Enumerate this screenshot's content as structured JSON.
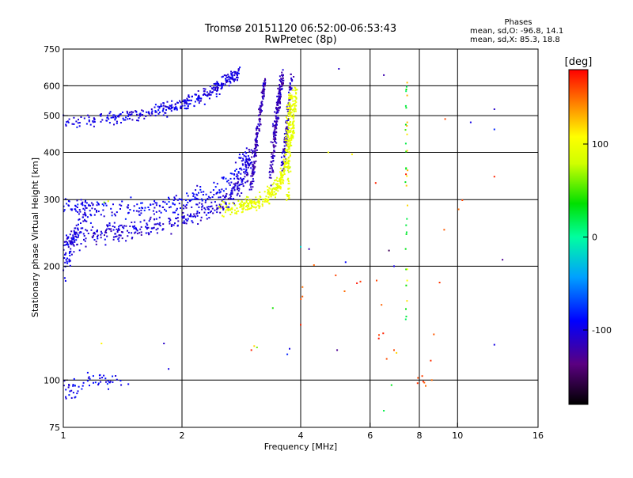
{
  "header": {
    "title_line1": "Tromsø 20151120 06:52:00-06:53:43",
    "title_line2": "RwPretec (8p)",
    "stats_title": "Phases",
    "stats_line1": "mean, sd,O: -96.8, 14.1",
    "stats_line2": "mean, sd,X:  85.3, 18.8"
  },
  "chart_data": {
    "type": "scatter",
    "xlabel": "Frequency [MHz]",
    "ylabel": "Stationary phase Virtual Height [km]",
    "xscale": "log",
    "yscale": "log",
    "xlim": [
      1,
      16
    ],
    "ylim": [
      75,
      750
    ],
    "x_ticks": [
      1,
      2,
      4,
      6,
      8,
      10,
      16
    ],
    "x_grid": [
      2,
      4,
      6,
      8,
      10
    ],
    "y_ticks": [
      75,
      100,
      200,
      300,
      400,
      500,
      600,
      750
    ],
    "y_grid": [
      100,
      200,
      300,
      400,
      500,
      600
    ],
    "colorbar": {
      "label": "[deg]",
      "range": [
        -180,
        180
      ],
      "ticks": [
        100,
        0,
        -100
      ]
    },
    "traces": [
      {
        "name": "o-F2",
        "phase": -100,
        "spread": 0.035,
        "count": 360,
        "points": [
          [
            1.0,
            485
          ],
          [
            1.2,
            488
          ],
          [
            1.4,
            495
          ],
          [
            1.6,
            505
          ],
          [
            1.8,
            520
          ],
          [
            2.0,
            535
          ],
          [
            2.2,
            555
          ],
          [
            2.4,
            585
          ],
          [
            2.6,
            620
          ],
          [
            2.8,
            650
          ]
        ]
      },
      {
        "name": "o-F-lower",
        "phase": -105,
        "spread": 0.05,
        "count": 420,
        "points": [
          [
            1.0,
            232
          ],
          [
            1.1,
            238
          ],
          [
            1.3,
            244
          ],
          [
            1.6,
            252
          ],
          [
            1.9,
            262
          ],
          [
            2.2,
            275
          ],
          [
            2.5,
            292
          ],
          [
            2.7,
            312
          ],
          [
            2.9,
            350
          ],
          [
            3.0,
            400
          ]
        ]
      },
      {
        "name": "o-F-upper",
        "phase": -95,
        "spread": 0.05,
        "count": 240,
        "points": [
          [
            1.0,
            292
          ],
          [
            1.2,
            285
          ],
          [
            1.5,
            283
          ],
          [
            1.8,
            288
          ],
          [
            2.1,
            300
          ],
          [
            2.4,
            315
          ],
          [
            2.7,
            345
          ],
          [
            2.9,
            390
          ]
        ]
      },
      {
        "name": "o-low-ramp",
        "phase": -100,
        "spread": 0.07,
        "count": 90,
        "points": [
          [
            1.0,
            190
          ],
          [
            1.03,
            215
          ],
          [
            1.06,
            240
          ],
          [
            1.1,
            260
          ],
          [
            1.15,
            280
          ]
        ]
      },
      {
        "name": "o-cusp-a",
        "phase": -115,
        "spread": 0.025,
        "count": 170,
        "points": [
          [
            3.0,
            320
          ],
          [
            3.05,
            380
          ],
          [
            3.1,
            440
          ],
          [
            3.15,
            500
          ],
          [
            3.2,
            560
          ],
          [
            3.25,
            620
          ]
        ]
      },
      {
        "name": "o-cusp-b",
        "phase": -115,
        "spread": 0.03,
        "count": 190,
        "points": [
          [
            3.35,
            340
          ],
          [
            3.4,
            400
          ],
          [
            3.45,
            460
          ],
          [
            3.5,
            520
          ],
          [
            3.55,
            580
          ],
          [
            3.6,
            640
          ]
        ]
      },
      {
        "name": "o-cusp-c",
        "phase": -110,
        "spread": 0.03,
        "count": 110,
        "points": [
          [
            3.6,
            360
          ],
          [
            3.65,
            420
          ],
          [
            3.7,
            480
          ],
          [
            3.75,
            560
          ],
          [
            3.8,
            640
          ]
        ]
      },
      {
        "name": "x-F",
        "phase": 95,
        "spread": 0.04,
        "count": 360,
        "points": [
          [
            2.5,
            285
          ],
          [
            2.8,
            288
          ],
          [
            3.0,
            292
          ],
          [
            3.2,
            300
          ],
          [
            3.4,
            315
          ],
          [
            3.55,
            335
          ],
          [
            3.65,
            360
          ],
          [
            3.7,
            400
          ],
          [
            3.72,
            460
          ],
          [
            3.75,
            520
          ],
          [
            3.8,
            580
          ]
        ]
      },
      {
        "name": "x-cusp",
        "phase": 92,
        "spread": 0.03,
        "count": 110,
        "points": [
          [
            3.7,
            300
          ],
          [
            3.75,
            380
          ],
          [
            3.8,
            450
          ],
          [
            3.85,
            520
          ],
          [
            3.9,
            600
          ]
        ]
      },
      {
        "name": "low-echoes",
        "phase": -95,
        "spread": 0.05,
        "count": 60,
        "points": [
          [
            1.0,
            96
          ],
          [
            1.05,
            93
          ],
          [
            1.1,
            97
          ],
          [
            1.2,
            101
          ],
          [
            1.3,
            97
          ],
          [
            1.45,
            99
          ]
        ]
      },
      {
        "name": "cyan-7.4",
        "phase": 30,
        "spread": 0.01,
        "count": 22,
        "points": [
          [
            7.4,
            110
          ],
          [
            7.4,
            180
          ],
          [
            7.4,
            240
          ],
          [
            7.4,
            310
          ],
          [
            7.4,
            420
          ],
          [
            7.4,
            520
          ],
          [
            7.4,
            620
          ]
        ]
      },
      {
        "name": "yellow-7.4",
        "phase": 120,
        "spread": 0.01,
        "count": 14,
        "points": [
          [
            7.45,
            160
          ],
          [
            7.45,
            300
          ],
          [
            7.45,
            390
          ],
          [
            7.45,
            520
          ],
          [
            7.45,
            640
          ]
        ]
      },
      {
        "name": "sparse-mid",
        "phase": 160,
        "spread": 0.05,
        "count": 26,
        "points": [
          [
            4.0,
            150
          ],
          [
            4.1,
            200
          ],
          [
            5.2,
            180
          ],
          [
            6.2,
            190
          ],
          [
            6.4,
            125
          ],
          [
            6.6,
            115
          ],
          [
            8.0,
            100
          ],
          [
            8.5,
            100
          ],
          [
            9.5,
            285
          ],
          [
            12.5,
            330
          ]
        ]
      }
    ],
    "singles": [
      [
        1.27,
        295,
        60
      ],
      [
        1.3,
        297,
        95
      ],
      [
        1.25,
        125,
        110
      ],
      [
        1.8,
        125,
        -110
      ],
      [
        1.85,
        107,
        -100
      ],
      [
        3.0,
        120,
        170
      ],
      [
        3.05,
        123,
        120
      ],
      [
        3.1,
        122,
        60
      ],
      [
        3.4,
        155,
        40
      ],
      [
        3.7,
        117,
        -80
      ],
      [
        3.75,
        121,
        -100
      ],
      [
        4.0,
        140,
        170
      ],
      [
        4.0,
        225,
        -20
      ],
      [
        4.2,
        222,
        -120
      ],
      [
        4.95,
        120,
        -130
      ],
      [
        5.0,
        665,
        -110
      ],
      [
        5.4,
        395,
        110
      ],
      [
        5.2,
        205,
        -90
      ],
      [
        6.5,
        640,
        -120
      ],
      [
        6.7,
        220,
        -150
      ],
      [
        6.9,
        200,
        -100
      ],
      [
        6.5,
        83,
        20
      ],
      [
        6.8,
        97,
        30
      ],
      [
        6.9,
        120,
        160
      ],
      [
        7.0,
        118,
        120
      ],
      [
        7.4,
        350,
        170
      ],
      [
        8.6,
        100,
        150
      ],
      [
        9.3,
        490,
        160
      ],
      [
        10.8,
        480,
        -100
      ],
      [
        12.4,
        520,
        -110
      ],
      [
        12.4,
        460,
        -80
      ],
      [
        12.4,
        345,
        170
      ],
      [
        12.4,
        124,
        -100
      ],
      [
        13.0,
        208,
        -130
      ],
      [
        4.7,
        400,
        100
      ],
      [
        6.2,
        332,
        170
      ]
    ]
  }
}
